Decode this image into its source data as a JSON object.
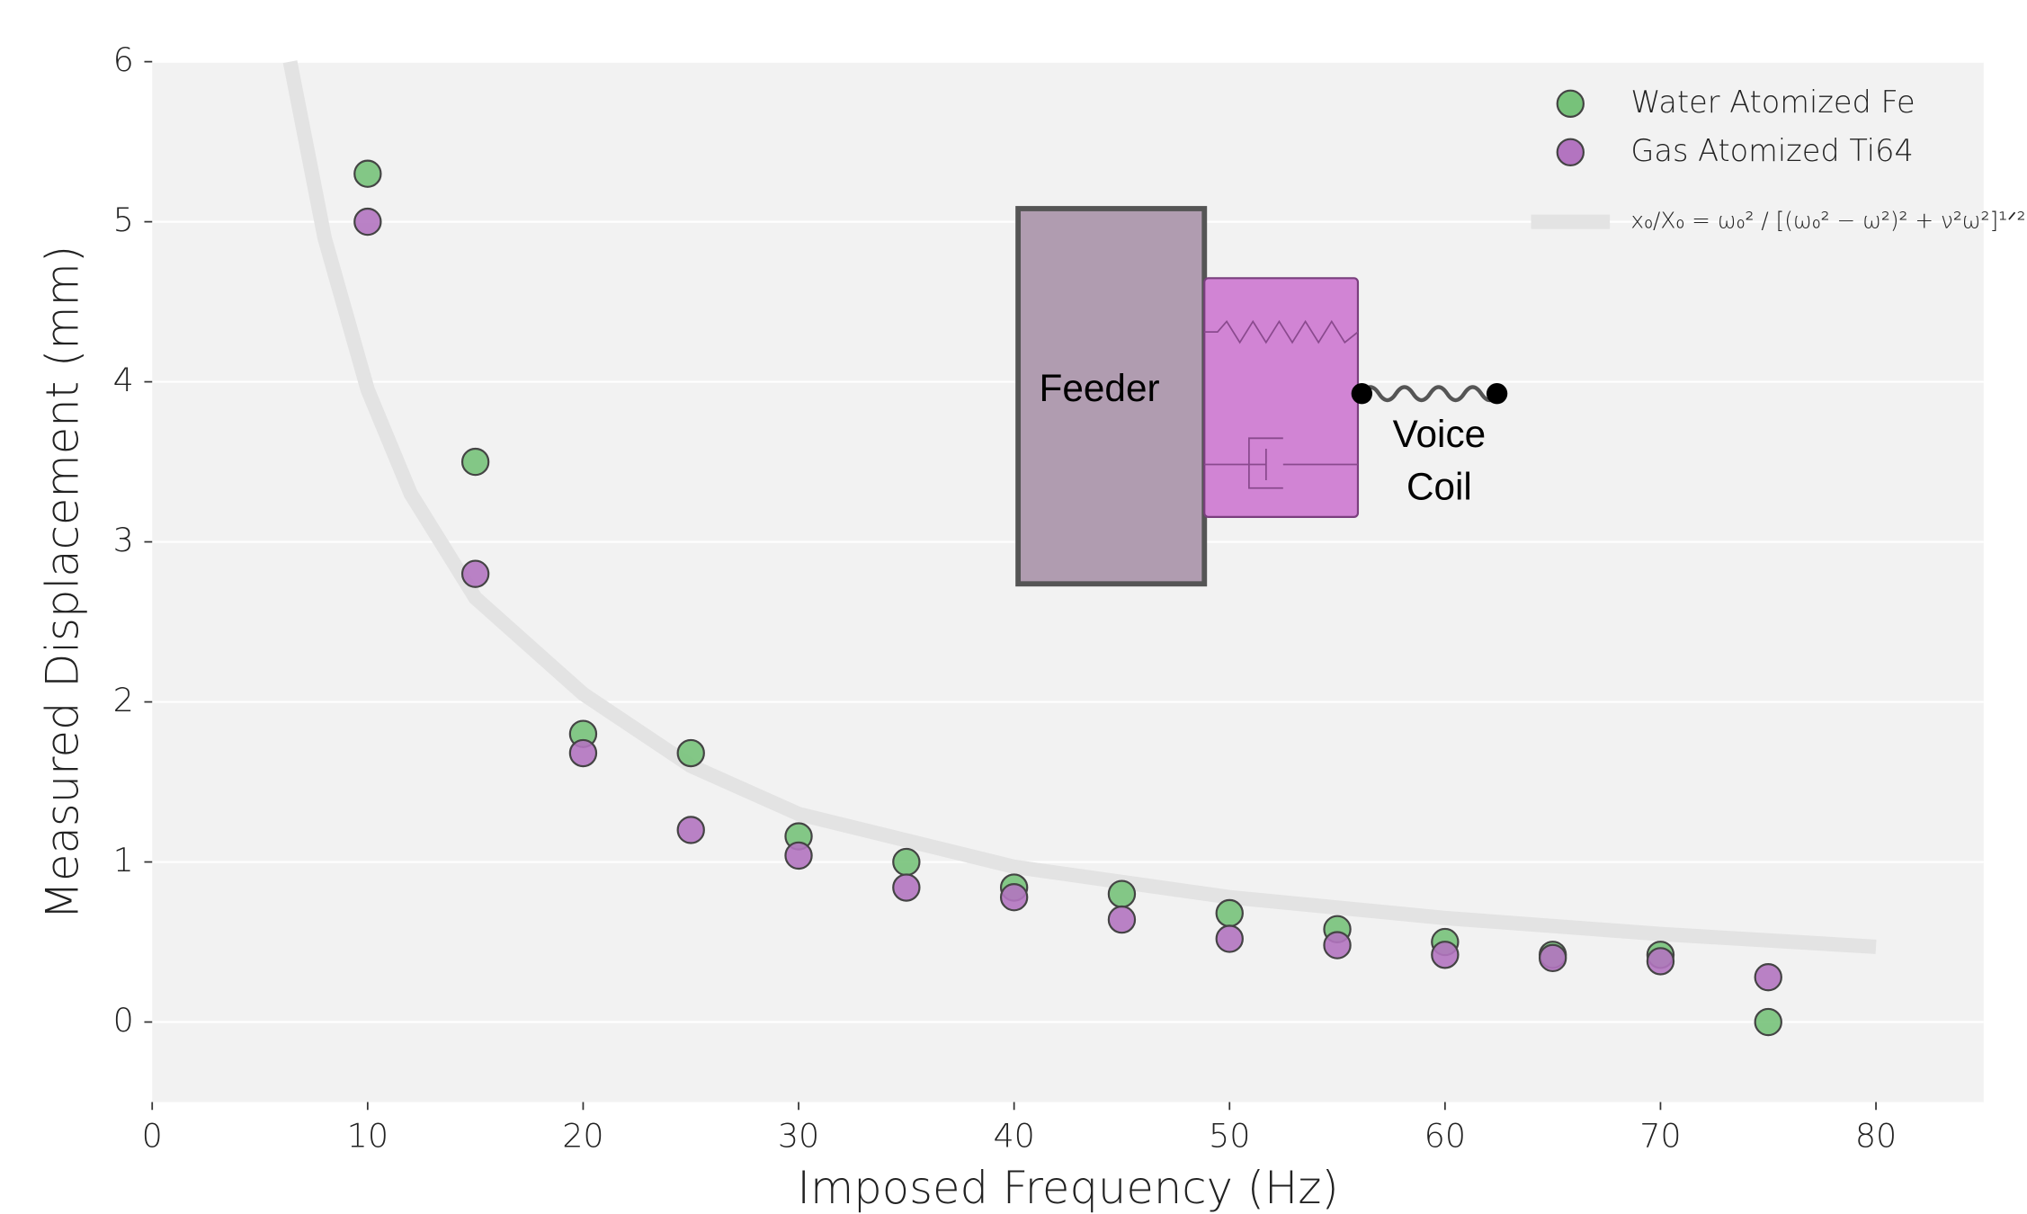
{
  "chart_data": {
    "type": "scatter",
    "xlabel": "Imposed Frequency (Hz)",
    "ylabel": "Measured Displacement (mm)",
    "xlim": [
      0,
      85
    ],
    "ylim": [
      -0.5,
      6
    ],
    "xticks": [
      0,
      10,
      20,
      30,
      40,
      50,
      60,
      70,
      80
    ],
    "yticks": [
      0,
      1,
      2,
      3,
      4,
      5,
      6
    ],
    "grid": true,
    "legend": "upper right",
    "x": [
      10,
      15,
      20,
      25,
      30,
      35,
      40,
      45,
      50,
      55,
      60,
      65,
      70,
      75
    ],
    "series": [
      {
        "name": "Water Atomized Fe",
        "color": "#77c27a",
        "values": [
          5.3,
          3.5,
          1.8,
          1.68,
          1.16,
          1.0,
          0.84,
          0.8,
          0.68,
          0.58,
          0.5,
          0.42,
          0.42,
          0.0
        ]
      },
      {
        "name": "Gas Atomized Ti64",
        "color": "#b374c0",
        "values": [
          5.0,
          2.8,
          1.68,
          1.2,
          1.04,
          0.84,
          0.78,
          0.64,
          0.52,
          0.48,
          0.42,
          0.4,
          0.38,
          0.28
        ]
      }
    ],
    "curve": {
      "name": "x₀/X₀ = ω₀² / [(ω₀² − ω²)² + ν²ω²]¹ᐟ²",
      "color": "#e3e3e3",
      "x": [
        6.4,
        8,
        10,
        12,
        15,
        20,
        25,
        30,
        40,
        50,
        60,
        70,
        80
      ],
      "values": [
        6.0,
        4.9,
        3.95,
        3.3,
        2.65,
        2.05,
        1.6,
        1.3,
        0.97,
        0.78,
        0.65,
        0.55,
        0.47
      ]
    },
    "annotations": [
      "Feeder",
      "Voice",
      "Coil"
    ]
  }
}
